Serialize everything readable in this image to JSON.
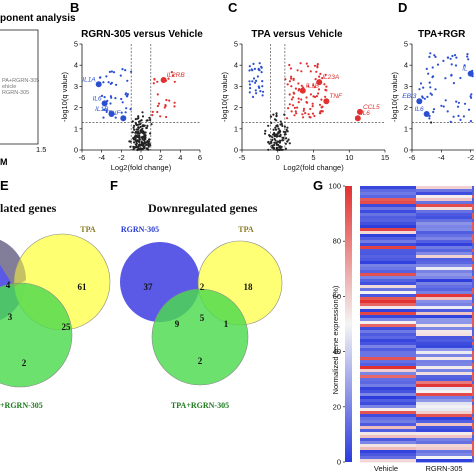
{
  "panels": {
    "a_title": "ponent analysis",
    "a_legend": [
      "PA+RGRN-305",
      "ehicle",
      "RGRN-305"
    ],
    "a_tick": "1.5",
    "a_m": "M",
    "labels": [
      "B",
      "C",
      "D",
      "E",
      "F",
      "G"
    ]
  },
  "chart_data": [
    {
      "type": "scatter",
      "panel": "B",
      "title": "RGRN-305 versus Vehicle",
      "xlabel": "Log2(fold change)",
      "ylabel": "-log10(q value)",
      "xlim": [
        -6,
        6
      ],
      "ylim": [
        0,
        5
      ],
      "xticks": [
        "-6",
        "-4",
        "-2",
        "0",
        "2",
        "4",
        "6"
      ],
      "yticks": [
        "0",
        "1",
        "2",
        "3",
        "4",
        "5"
      ],
      "colors": {
        "up": "#e03030",
        "down": "#2a4fd0",
        "ns": "#222222"
      },
      "labeled_genes": [
        {
          "name": "IL1A",
          "x": -4.3,
          "y": 3.1,
          "group": "down"
        },
        {
          "name": "IL6",
          "x": -3.7,
          "y": 2.2,
          "group": "down"
        },
        {
          "name": "IL1B",
          "x": -3.0,
          "y": 1.7,
          "group": "down"
        },
        {
          "name": "TNF",
          "x": -1.8,
          "y": 1.5,
          "group": "down"
        },
        {
          "name": "IL2RB",
          "x": 2.3,
          "y": 3.3,
          "group": "up"
        }
      ]
    },
    {
      "type": "scatter",
      "panel": "C",
      "title": "TPA versus Vehicle",
      "xlabel": "Log2(fold change)",
      "ylabel": "-log10(q value)",
      "xlim": [
        -5,
        15
      ],
      "ylim": [
        0,
        5
      ],
      "xticks": [
        "-5",
        "0",
        "5",
        "10",
        "15"
      ],
      "yticks": [
        "0",
        "1",
        "2",
        "3",
        "4",
        "5"
      ],
      "colors": {
        "up": "#e03030",
        "down": "#2a4fd0",
        "ns": "#222222"
      },
      "labeled_genes": [
        {
          "name": "IL23A",
          "x": 5.8,
          "y": 3.2,
          "group": "up"
        },
        {
          "name": "IL1B",
          "x": 3.5,
          "y": 2.8,
          "group": "up"
        },
        {
          "name": "TNF",
          "x": 6.8,
          "y": 2.3,
          "group": "up"
        },
        {
          "name": "CCL5",
          "x": 11.5,
          "y": 1.8,
          "group": "up"
        },
        {
          "name": "IL6",
          "x": 11.2,
          "y": 1.5,
          "group": "up"
        }
      ]
    },
    {
      "type": "scatter",
      "panel": "D",
      "title": "TPA+RGR",
      "xlabel": "",
      "ylabel": "-log10(q value)",
      "xlim": [
        -6,
        0
      ],
      "ylim": [
        0,
        5
      ],
      "xticks": [
        "-6",
        "-4",
        "-2"
      ],
      "yticks": [
        "0",
        "1",
        "2",
        "3",
        "4",
        "5"
      ],
      "colors": {
        "up": "#e03030",
        "down": "#2a4fd0",
        "ns": "#222222"
      },
      "labeled_genes": [
        {
          "name": "EBI3",
          "x": -5.5,
          "y": 2.3,
          "group": "down"
        },
        {
          "name": "IL6",
          "x": -5.0,
          "y": 1.7,
          "group": "down"
        },
        {
          "name": "IL",
          "x": -2.0,
          "y": 3.6,
          "group": "down"
        }
      ]
    },
    {
      "type": "venn",
      "panel": "E",
      "title": "lated genes",
      "sets": [
        "TPA",
        "+RGRN-305"
      ],
      "regions": {
        "left_tpa": "4",
        "tpa_only": "61",
        "center": "3",
        "tpa_combo": "25",
        "combo_only": "2"
      }
    },
    {
      "type": "venn",
      "panel": "F",
      "title": "Downregulated genes",
      "sets": [
        "RGRN-305",
        "TPA",
        "TPA+RGRN-305"
      ],
      "regions": {
        "rgrn_only": "37",
        "rgrn_tpa": "2",
        "tpa_only": "18",
        "rgrn_combo": "9",
        "center": "5",
        "tpa_combo": "1",
        "combo_only": "2"
      }
    },
    {
      "type": "heatmap",
      "panel": "G",
      "ylabel": "Normalized gene expression (%)",
      "yticks": [
        "0",
        "20",
        "40",
        "60",
        "80",
        "100"
      ],
      "columns": [
        "Vehicle",
        "RGRN-305",
        ""
      ],
      "colorbar_range": [
        0,
        100
      ],
      "colors": {
        "low": "#2b3bdc",
        "mid": "#f4f4f4",
        "high": "#e23030"
      }
    }
  ]
}
